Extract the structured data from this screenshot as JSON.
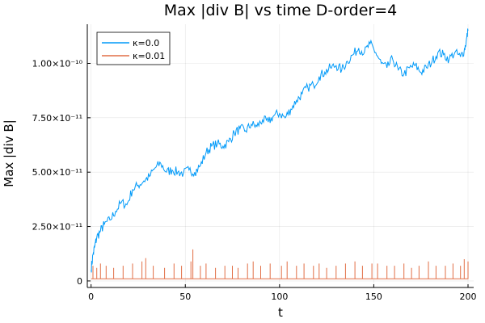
{
  "chart_data": {
    "type": "line",
    "title": "Max |div B| vs time D-order=4",
    "xlabel": "t",
    "ylabel": "Max |div B|",
    "xlim": [
      -2,
      203
    ],
    "ylim": [
      -3e-12,
      1.18e-10
    ],
    "xticks": [
      0,
      50,
      100,
      150,
      200
    ],
    "xtick_labels": [
      "0",
      "50",
      "100",
      "150",
      "200"
    ],
    "yticks": [
      0,
      2.5e-11,
      5e-11,
      7.5e-11,
      1e-10
    ],
    "ytick_labels": [
      "0",
      "2.50×10⁻¹¹",
      "5.00×10⁻¹¹",
      "7.50×10⁻¹¹",
      "1.00×10⁻¹⁰"
    ],
    "grid": true,
    "legend_position": "top-left",
    "series": [
      {
        "name": "κ=0.0",
        "color": "#009af9",
        "x": [
          0,
          1,
          2,
          3,
          5,
          7,
          10,
          13,
          16,
          19,
          22,
          25,
          28,
          31,
          34,
          37,
          40,
          43,
          46,
          49,
          52,
          55,
          58,
          61,
          64,
          67,
          70,
          73,
          76,
          79,
          82,
          85,
          88,
          91,
          94,
          97,
          100,
          103,
          106,
          109,
          112,
          115,
          118,
          121,
          124,
          127,
          130,
          133,
          136,
          139,
          142,
          145,
          148,
          151,
          154,
          157,
          160,
          163,
          166,
          169,
          172,
          175,
          178,
          181,
          184,
          187,
          190,
          193,
          196,
          198,
          199,
          200
        ],
        "y": [
          5e-12,
          1.2e-11,
          1.6e-11,
          2e-11,
          2.3e-11,
          2.6e-11,
          2.8e-11,
          3.2e-11,
          3.6e-11,
          3.5e-11,
          4.2e-11,
          4.4e-11,
          4.6e-11,
          4.8e-11,
          5.2e-11,
          5.4e-11,
          5e-11,
          5.1e-11,
          5e-11,
          4.95e-11,
          5.1e-11,
          5e-11,
          5.3e-11,
          5.9e-11,
          6.2e-11,
          6.3e-11,
          6.2e-11,
          6.4e-11,
          6.8e-11,
          7e-11,
          6.9e-11,
          7.2e-11,
          7.1e-11,
          7.4e-11,
          7.3e-11,
          7.6e-11,
          7.7e-11,
          7.5e-11,
          7.9e-11,
          8.3e-11,
          8.6e-11,
          8.9e-11,
          9e-11,
          9.4e-11,
          9.6e-11,
          9.8e-11,
          9.9e-11,
          9.7e-11,
          1.01e-10,
          1.04e-10,
          1.07e-10,
          1.05e-10,
          1.09e-10,
          1.05e-10,
          1e-10,
          9.8e-11,
          1.02e-10,
          9.7e-11,
          9.5e-11,
          9.8e-11,
          9.9e-11,
          9.6e-11,
          9.8e-11,
          1.01e-10,
          1.05e-10,
          1.04e-10,
          1.02e-10,
          1.05e-10,
          1.03e-10,
          1.06e-10,
          1.1e-10,
          1.15e-10
        ]
      },
      {
        "name": "κ=0.01",
        "color": "#e26f46",
        "x": [
          0,
          200
        ],
        "y": [
          1e-12,
          9e-12
        ],
        "noise_floor": 1e-12,
        "noise_peak": 1.45e-11,
        "spikes_x": [
          1,
          3,
          5,
          8,
          12,
          17,
          22,
          27,
          29,
          33,
          39,
          44,
          48,
          53,
          54,
          58,
          61,
          66,
          71,
          75,
          78,
          83,
          86,
          90,
          95,
          101,
          104,
          109,
          113,
          118,
          121,
          125,
          130,
          135,
          140,
          144,
          149,
          152,
          157,
          161,
          166,
          170,
          174,
          179,
          183,
          188,
          192,
          196,
          198,
          200
        ],
        "spikes_y": [
          7e-12,
          6e-12,
          8e-12,
          7e-12,
          6e-12,
          7e-12,
          8e-12,
          9e-12,
          1.05e-11,
          7e-12,
          6e-12,
          8e-12,
          7e-12,
          9e-12,
          1.45e-11,
          7e-12,
          8e-12,
          6e-12,
          7e-12,
          7e-12,
          6e-12,
          8e-12,
          9e-12,
          7e-12,
          8e-12,
          7e-12,
          9e-12,
          7e-12,
          8e-12,
          7e-12,
          8e-12,
          6e-12,
          7e-12,
          8e-12,
          9e-12,
          7e-12,
          8e-12,
          8e-12,
          7e-12,
          7e-12,
          8e-12,
          6e-12,
          7e-12,
          9e-12,
          7e-12,
          7e-12,
          8e-12,
          7e-12,
          1e-11,
          9e-12
        ]
      }
    ]
  }
}
